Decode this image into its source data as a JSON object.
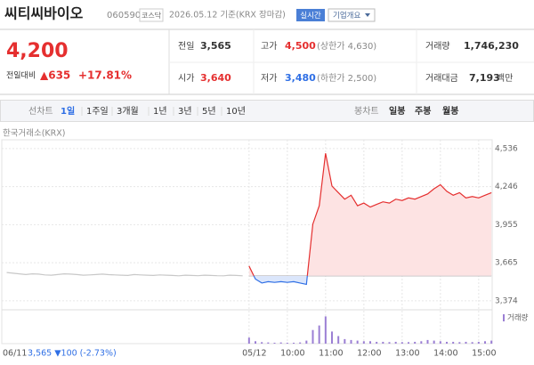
{
  "header": {
    "name": "씨티씨바이오",
    "code": "060590",
    "market": "코스닥",
    "date": "2026.05.12 기준(KRX 장마감)",
    "realtime": "실시간",
    "overview": "기업개요"
  },
  "quote": {
    "price": "4,200",
    "change_label": "전일대비",
    "change": "▲635",
    "change_pct": "+17.81%",
    "stats": [
      {
        "label": "전일",
        "value": "3,565"
      },
      {
        "label": "고가",
        "value": "4,500",
        "extra": "(상한가 4,630)"
      },
      {
        "label": "거래량",
        "value": "1,746,230"
      },
      {
        "label": "시가",
        "value": "3,640"
      },
      {
        "label": "저가",
        "value": "3,480",
        "extra": "(하한가 2,500)"
      },
      {
        "label": "거래대금",
        "value": "7,193",
        "unit": "백만"
      }
    ]
  },
  "tabs": {
    "line_label": "선차트",
    "periods": [
      "1일",
      "1주일",
      "3개월",
      "1년",
      "3년",
      "5년",
      "10년"
    ],
    "candle_label": "봉차트",
    "candles": [
      "일봉",
      "주봉",
      "월봉"
    ]
  },
  "source": "한국거래소(KRX)",
  "footer": {
    "date": "06/11",
    "value": "3,565 ▼100 (-2.73%)"
  },
  "chart_data": {
    "type": "line",
    "categories": [
      null,
      null,
      null,
      null,
      null,
      null,
      null,
      null,
      null,
      null,
      null,
      null,
      null,
      null,
      null,
      null,
      null,
      null,
      null,
      null,
      null,
      null,
      null,
      null,
      null,
      null,
      null,
      null,
      null,
      null,
      null,
      null,
      null,
      null,
      null,
      null,
      null,
      null,
      "05/12",
      null,
      null,
      null,
      null,
      null,
      "10:00",
      null,
      null,
      null,
      null,
      null,
      "11:00",
      null,
      null,
      null,
      null,
      null,
      "12:00",
      null,
      null,
      null,
      null,
      null,
      "13:00",
      null,
      null,
      null,
      null,
      null,
      "14:00",
      null,
      null,
      null,
      null,
      null,
      "15:00",
      null,
      null
    ],
    "ylim": [
      3326,
      4583
    ],
    "yticks": [
      {
        "value": 3374,
        "label": "3,374"
      },
      {
        "value": 3665,
        "label": "3,665"
      },
      {
        "value": 3955,
        "label": "3,955"
      },
      {
        "value": 4246,
        "label": "4,246"
      },
      {
        "value": 4536,
        "label": "4,536"
      }
    ],
    "baseline": 3565,
    "grid": true,
    "price_prev": {
      "color": "#c8c8c8",
      "values": [
        3590,
        3585,
        3580,
        3575,
        3580,
        3578,
        3572,
        3570,
        3575,
        3580,
        3578,
        3575,
        3570,
        3572,
        3575,
        3578,
        3574,
        3572,
        3570,
        3568,
        3575,
        3572,
        3570,
        3568,
        3572,
        3570,
        3568,
        3565,
        3570,
        3568,
        3566,
        3570,
        3568,
        3566,
        3565,
        3570,
        3568,
        3565,
        null,
        null,
        null,
        null,
        null,
        null,
        null,
        null,
        null,
        null,
        null,
        null,
        null,
        null,
        null,
        null,
        null,
        null,
        null,
        null,
        null,
        null,
        null,
        null,
        null,
        null,
        null,
        null,
        null,
        null,
        null,
        null,
        null,
        null,
        null,
        null,
        null,
        null,
        null
      ]
    },
    "price": {
      "up_color": "#e52f2f",
      "down_color": "#2f6fe5",
      "values": [
        null,
        null,
        null,
        null,
        null,
        null,
        null,
        null,
        null,
        null,
        null,
        null,
        null,
        null,
        null,
        null,
        null,
        null,
        null,
        null,
        null,
        null,
        null,
        null,
        null,
        null,
        null,
        null,
        null,
        null,
        null,
        null,
        null,
        null,
        null,
        null,
        null,
        null,
        3640,
        3540,
        3510,
        3520,
        3515,
        3520,
        3515,
        3520,
        3510,
        3500,
        3960,
        4100,
        4500,
        4250,
        4200,
        4150,
        4180,
        4100,
        4120,
        4090,
        4110,
        4130,
        4120,
        4150,
        4140,
        4160,
        4150,
        4170,
        4190,
        4230,
        4260,
        4210,
        4180,
        4200,
        4160,
        4170,
        4160,
        4180,
        4200
      ]
    },
    "volume": {
      "name": "거래량",
      "color": "#9b7fd4",
      "vlim": [
        0,
        100
      ],
      "values": [
        null,
        null,
        null,
        null,
        null,
        null,
        null,
        null,
        null,
        null,
        null,
        null,
        null,
        null,
        null,
        null,
        null,
        null,
        null,
        null,
        null,
        null,
        null,
        null,
        null,
        null,
        null,
        null,
        null,
        null,
        null,
        null,
        null,
        null,
        null,
        null,
        null,
        null,
        20,
        8,
        5,
        4,
        3,
        4,
        3,
        3,
        4,
        10,
        45,
        60,
        90,
        40,
        25,
        15,
        12,
        10,
        8,
        8,
        6,
        6,
        5,
        6,
        5,
        5,
        6,
        8,
        12,
        10,
        8,
        6,
        6,
        5,
        6,
        5,
        6,
        8,
        10
      ]
    }
  }
}
